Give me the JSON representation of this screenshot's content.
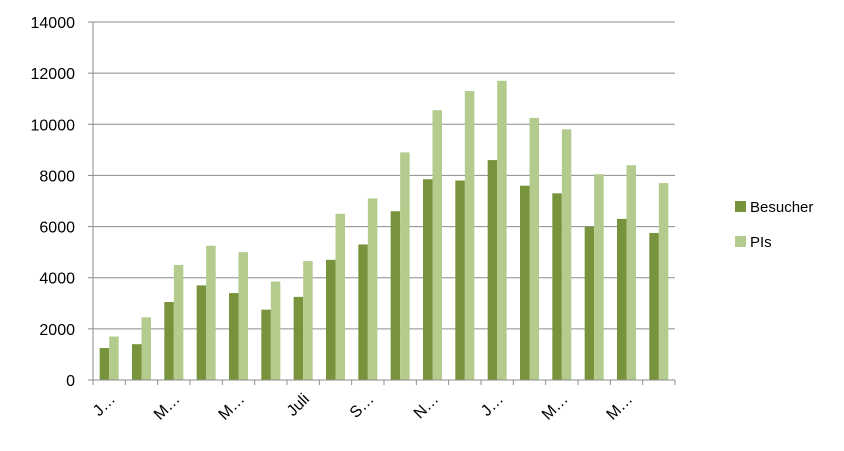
{
  "chart_data": {
    "type": "bar",
    "title": "",
    "xlabel": "",
    "ylabel": "",
    "ylim": [
      0,
      14000
    ],
    "yticks": [
      0,
      2000,
      4000,
      6000,
      8000,
      10000,
      12000,
      14000
    ],
    "grid": true,
    "legend_position": "right",
    "categories": [
      "J…",
      "",
      "M…",
      "",
      "M…",
      "",
      "Juli",
      "",
      "S…",
      "",
      "N…",
      "",
      "J…",
      "",
      "M…",
      "",
      "M…",
      ""
    ],
    "series": [
      {
        "name": "Besucher",
        "color": "#77933c",
        "values": [
          1250,
          1400,
          3050,
          3700,
          3400,
          2750,
          3250,
          4700,
          5300,
          6600,
          7850,
          7800,
          8600,
          7600,
          7300,
          6000,
          6300,
          5750
        ]
      },
      {
        "name": "PIs",
        "color": "#b3cb8c",
        "values": [
          1700,
          2450,
          4500,
          5250,
          5000,
          3850,
          4650,
          6500,
          7100,
          8900,
          10550,
          11300,
          11700,
          10250,
          9800,
          8050,
          8400,
          7700
        ]
      }
    ]
  }
}
